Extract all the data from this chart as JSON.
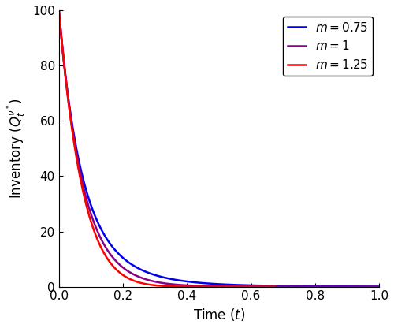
{
  "q0": 100,
  "T_star": 0.075,
  "t_max": 1.0,
  "n_points": 5000,
  "curves": [
    {
      "m": 0.75,
      "label": "$m = 0.75$",
      "color": "#0000EE",
      "linewidth": 1.8
    },
    {
      "m": 1.0,
      "label": "$m = 1$",
      "color": "#8B008B",
      "linewidth": 1.8
    },
    {
      "m": 1.25,
      "label": "$m = 1.25$",
      "color": "#FF0000",
      "linewidth": 1.8
    }
  ],
  "xlabel": "Time ($t$)",
  "ylabel": "Inventory ($Q_t^{\\nu^*}$)",
  "xlim": [
    0,
    1
  ],
  "ylim": [
    0,
    100
  ],
  "xticks": [
    0,
    0.2,
    0.4,
    0.6,
    0.8,
    1.0
  ],
  "yticks": [
    0,
    20,
    40,
    60,
    80,
    100
  ],
  "legend_loc": "upper right",
  "legend_fontsize": 11,
  "axis_fontsize": 12,
  "tick_fontsize": 11,
  "background_color": "#ffffff",
  "figwidth": 5.0,
  "figheight": 4.16,
  "dpi": 100
}
